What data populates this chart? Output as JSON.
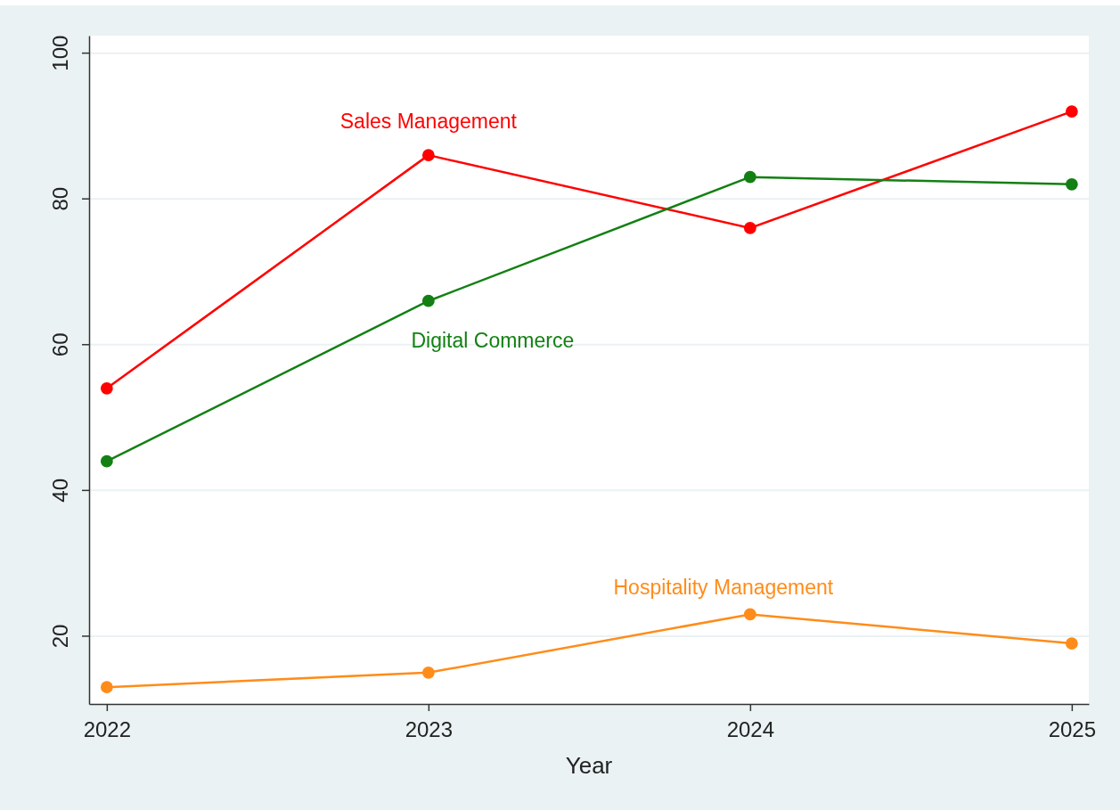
{
  "chart_data": {
    "type": "line",
    "xlabel": "Year",
    "x": [
      2022,
      2023,
      2024,
      2025
    ],
    "series": [
      {
        "name": "Sales Management",
        "color": "#ff0000",
        "values": [
          54,
          86,
          76,
          92
        ]
      },
      {
        "name": "Digital Commerce",
        "color": "#138013",
        "values": [
          44,
          66,
          83,
          82
        ]
      },
      {
        "name": "Hospitality Management",
        "color": "#ff8c1a",
        "values": [
          13,
          15,
          23,
          19
        ]
      }
    ],
    "xlim": [
      2021.945,
      2025.053
    ],
    "xticks": [
      2022,
      2023,
      2024,
      2025
    ],
    "ylim": [
      10.7,
      102.4
    ],
    "yticks": [
      20,
      40,
      60,
      80,
      100
    ],
    "grid": "y",
    "legend": false,
    "marker": "circle",
    "line_style": "solid"
  }
}
